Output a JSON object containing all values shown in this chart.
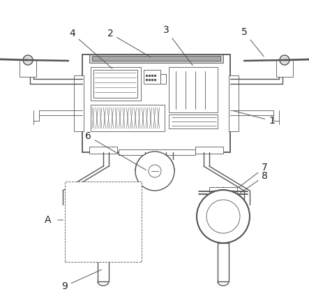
{
  "bg_color": "#ffffff",
  "lc": "#555555",
  "lw": 1.0,
  "tlw": 0.6,
  "figsize": [
    4.43,
    4.21
  ],
  "dpi": 100
}
